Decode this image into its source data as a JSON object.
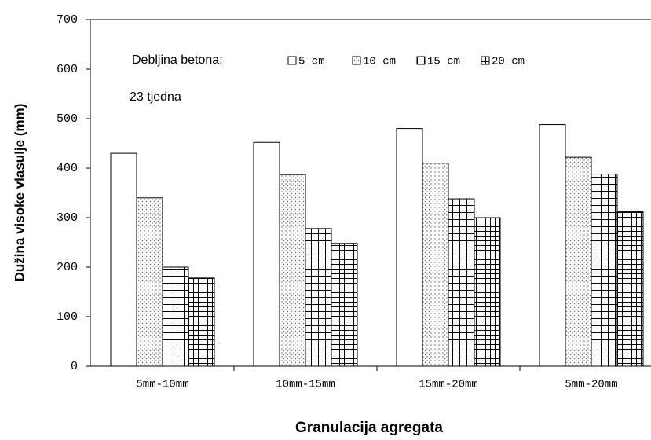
{
  "chart_data": {
    "type": "bar",
    "y_label": "Dužina visoke vlasulje (mm)",
    "x_label": "Granulacija agregata",
    "legend_title": "Debljina betona:",
    "annotation": "23 tjedna",
    "categories": [
      "5mm-10mm",
      "10mm-15mm",
      "15mm-20mm",
      "5mm-20mm"
    ],
    "series": [
      {
        "name": "5 cm",
        "values": [
          430,
          452,
          480,
          488
        ]
      },
      {
        "name": "10 cm",
        "values": [
          340,
          387,
          410,
          422
        ]
      },
      {
        "name": "15 cm",
        "values": [
          200,
          278,
          338,
          388
        ]
      },
      {
        "name": "20 cm",
        "values": [
          178,
          248,
          300,
          312
        ]
      }
    ],
    "ylim": [
      0,
      700
    ],
    "yticks": [
      0,
      100,
      200,
      300,
      400,
      500,
      600,
      700
    ]
  }
}
